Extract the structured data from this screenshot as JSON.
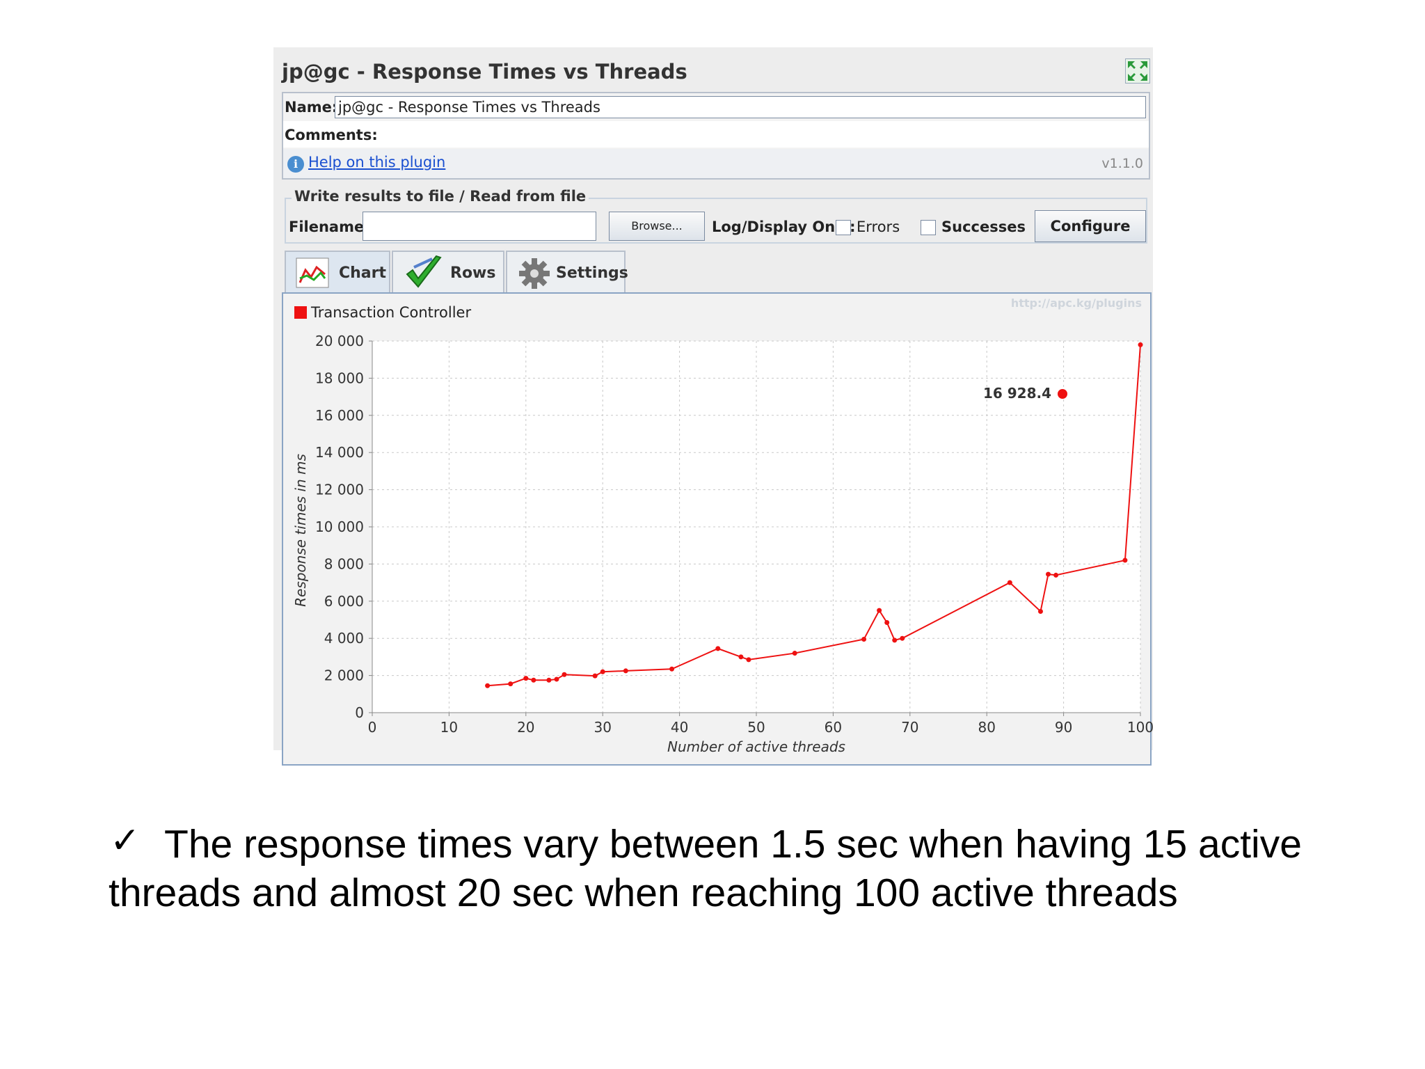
{
  "window": {
    "title": "jp@gc - Response Times vs Threads"
  },
  "form": {
    "name_label": "Name:",
    "name_value": "jp@gc - Response Times vs Threads",
    "comments_label": "Comments:",
    "help_link": "Help on this plugin",
    "version": "v1.1.0"
  },
  "file_section": {
    "legend": "Write results to file / Read from file",
    "filename_label": "Filename",
    "filename_value": "",
    "browse_label": "Browse...",
    "log_display_label": "Log/Display Only:",
    "errors_label": "Errors",
    "errors_checked": false,
    "successes_label": "Successes",
    "successes_checked": false,
    "configure_label": "Configure"
  },
  "tabs": [
    {
      "label": "Chart",
      "icon": "chart-icon",
      "active": true
    },
    {
      "label": "Rows",
      "icon": "checkmark-icon",
      "active": false
    },
    {
      "label": "Settings",
      "icon": "gear-icon",
      "active": false
    }
  ],
  "watermark": "http://apc.kg/plugins",
  "colors": {
    "series": "#ee1111",
    "panel": "#ededed"
  },
  "chart_data": {
    "type": "line",
    "title": "",
    "xlabel": "Number of active threads",
    "ylabel": "Response times in ms",
    "xlim": [
      0,
      100
    ],
    "ylim": [
      0,
      20000
    ],
    "xticks": [
      0,
      10,
      20,
      30,
      40,
      50,
      60,
      70,
      80,
      90,
      100
    ],
    "yticks": [
      0,
      2000,
      4000,
      6000,
      8000,
      10000,
      12000,
      14000,
      16000,
      18000,
      20000
    ],
    "xtick_labels": [
      "0",
      "10",
      "20",
      "30",
      "40",
      "50",
      "60",
      "70",
      "80",
      "90",
      "100"
    ],
    "ytick_labels": [
      "0",
      "2 000",
      "4 000",
      "6 000",
      "8 000",
      "10 000",
      "12 000",
      "14 000",
      "16 000",
      "18 000",
      "20 000"
    ],
    "grid": true,
    "legend_position": "top-left",
    "series": [
      {
        "name": "Transaction Controller",
        "x": [
          15,
          18,
          20,
          21,
          23,
          24,
          25,
          29,
          30,
          33,
          39,
          45,
          48,
          49,
          55,
          64,
          66,
          67,
          68,
          69,
          83,
          87,
          88,
          89,
          98,
          100
        ],
        "y": [
          1450,
          1550,
          1850,
          1750,
          1750,
          1800,
          2050,
          1980,
          2200,
          2250,
          2350,
          3450,
          3000,
          2850,
          3200,
          3950,
          5500,
          4850,
          3900,
          4000,
          7000,
          5450,
          7450,
          7400,
          8200,
          19800
        ]
      }
    ],
    "annotation": {
      "label": "16 928.4"
    }
  },
  "bullet": {
    "mark": "✓",
    "text": "The response times vary between 1.5 sec when having 15 active threads and almost 20 sec when reaching 100 active threads"
  }
}
